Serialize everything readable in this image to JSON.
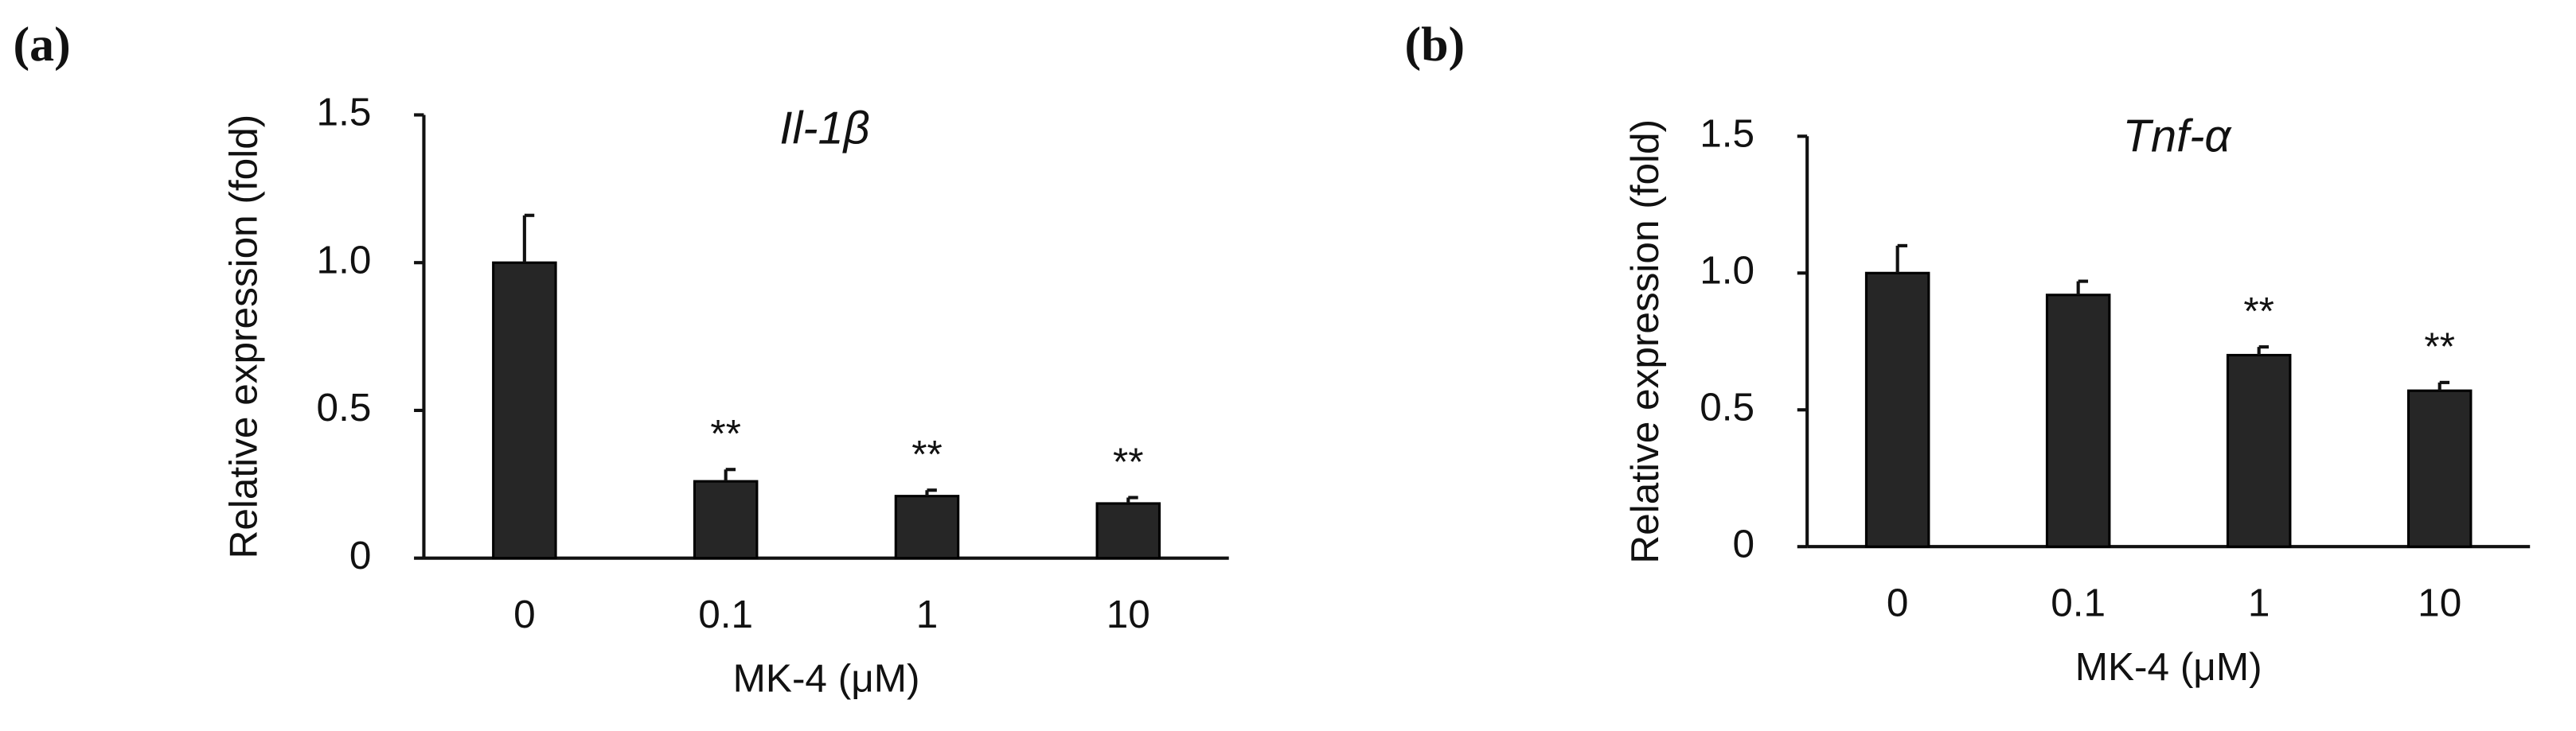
{
  "chart_data": [
    {
      "type": "bar",
      "panel_label": "(a)",
      "title": "Il-1β",
      "xlabel": "MK-4 (μM)",
      "ylabel": "Relative expression (fold)",
      "categories": [
        "0",
        "0.1",
        "1",
        "10"
      ],
      "values": [
        1.0,
        0.26,
        0.21,
        0.185
      ],
      "errors": [
        0.16,
        0.04,
        0.02,
        0.02
      ],
      "significance": [
        null,
        "**",
        "**",
        "**"
      ],
      "color": "#262626",
      "ylim": [
        0,
        1.5
      ],
      "yticks": [
        0,
        0.5,
        {
          "value": 1,
          "label": "1.0"
        },
        1.5
      ]
    },
    {
      "type": "bar",
      "panel_label": "(b)",
      "title": "Tnf-α",
      "xlabel": "MK-4 (μM)",
      "ylabel": "Relative expression (fold)",
      "categories": [
        "0",
        "0.1",
        "1",
        "10"
      ],
      "values": [
        1.0,
        0.92,
        0.7,
        0.57
      ],
      "errors": [
        0.1,
        0.05,
        0.03,
        0.03
      ],
      "significance": [
        null,
        null,
        "**",
        "**"
      ],
      "color": "#262626",
      "ylim": [
        0,
        1.5
      ],
      "yticks": [
        0,
        0.5,
        {
          "value": 1,
          "label": "1.0"
        },
        1.5
      ]
    }
  ]
}
